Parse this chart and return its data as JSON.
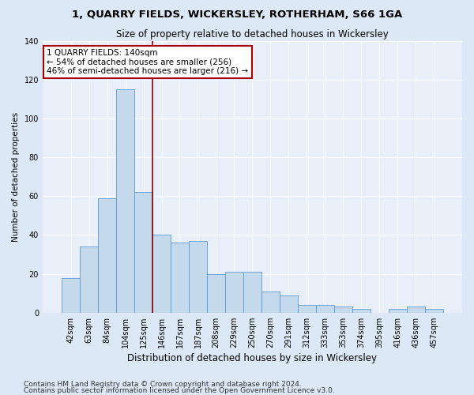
{
  "title": "1, QUARRY FIELDS, WICKERSLEY, ROTHERHAM, S66 1GA",
  "subtitle": "Size of property relative to detached houses in Wickersley",
  "xlabel": "Distribution of detached houses by size in Wickersley",
  "ylabel": "Number of detached properties",
  "categories": [
    "42sqm",
    "63sqm",
    "84sqm",
    "104sqm",
    "125sqm",
    "146sqm",
    "167sqm",
    "187sqm",
    "208sqm",
    "229sqm",
    "250sqm",
    "270sqm",
    "291sqm",
    "312sqm",
    "333sqm",
    "353sqm",
    "374sqm",
    "395sqm",
    "416sqm",
    "436sqm",
    "457sqm"
  ],
  "values": [
    18,
    34,
    59,
    115,
    62,
    40,
    36,
    37,
    20,
    21,
    21,
    11,
    9,
    4,
    4,
    3,
    2,
    0,
    2,
    3,
    2
  ],
  "bar_color": "#c5d9ed",
  "bar_edge_color": "#5b9bd5",
  "vline_x_index": 4.5,
  "vline_color": "#8b0000",
  "annotation_text": "1 QUARRY FIELDS: 140sqm\n← 54% of detached houses are smaller (256)\n46% of semi-detached houses are larger (216) →",
  "annotation_box_color": "#ffffff",
  "annotation_box_edge_color": "#aa0000",
  "ylim": [
    0,
    140
  ],
  "yticks": [
    0,
    20,
    40,
    60,
    80,
    100,
    120,
    140
  ],
  "bg_color": "#dce8f5",
  "plot_bg_color": "#e8eff8",
  "grid_color": "#ffffff",
  "footer1": "Contains HM Land Registry data © Crown copyright and database right 2024.",
  "footer2": "Contains public sector information licensed under the Open Government Licence v3.0.",
  "title_fontsize": 9.5,
  "subtitle_fontsize": 8.5,
  "xlabel_fontsize": 8.5,
  "ylabel_fontsize": 7.5,
  "tick_fontsize": 7,
  "annotation_fontsize": 7.5,
  "footer_fontsize": 6.5
}
